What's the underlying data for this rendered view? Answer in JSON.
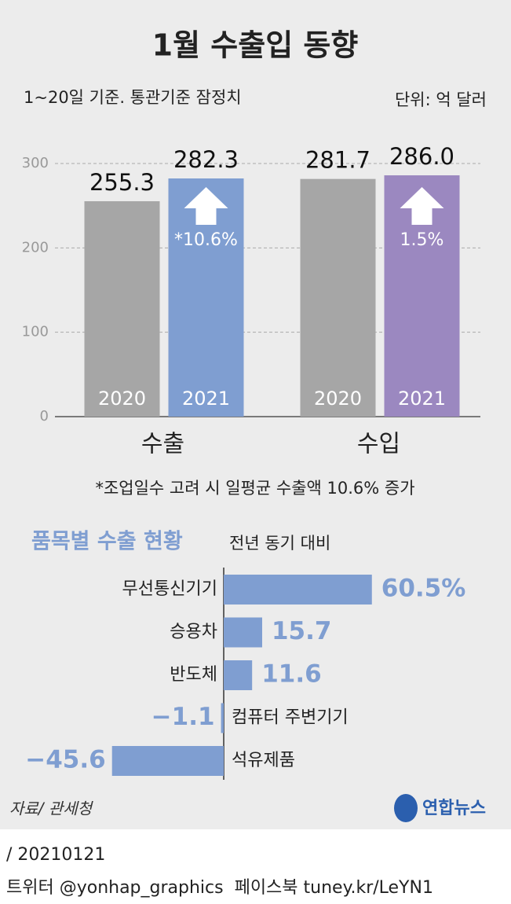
{
  "chart_data": [
    {
      "type": "bar",
      "title": "1월 수출입 동향",
      "subtitle": "1~20일 기준. 통관기준 잠정치",
      "unit": "단위: 억 달러",
      "categories": [
        "수출",
        "수입"
      ],
      "series": [
        {
          "name": "2020",
          "color": "#a6a6a6",
          "values": [
            255.3,
            281.7
          ],
          "value_labels": [
            "255.3",
            "281.7"
          ]
        },
        {
          "name": "2021",
          "colors": [
            "#7f9ed1",
            "#9b88c0"
          ],
          "values": [
            282.3,
            286.0
          ],
          "value_labels": [
            "282.3",
            "286.0"
          ],
          "change_labels": [
            "*10.6%",
            "1.5%"
          ]
        }
      ],
      "ylim": [
        0,
        300
      ],
      "yticks": [
        0,
        100,
        200,
        300
      ],
      "grid": true,
      "footnote": "*조업일수 고려 시 일평균 수출액 10.6% 증가"
    },
    {
      "type": "hbar",
      "title": "품목별 수출 현황",
      "subtitle": "전년 동기 대비",
      "color": "#7f9ed1",
      "categories": [
        "무선통신기기",
        "승용차",
        "반도체",
        "컴퓨터 주변기기",
        "석유제품"
      ],
      "values": [
        60.5,
        15.7,
        11.6,
        -1.1,
        -45.6
      ],
      "value_labels": [
        "60.5%",
        "15.7",
        "11.6",
        "−1.1",
        "−45.6"
      ]
    }
  ],
  "source": "자료/ 관세청",
  "logo": "연합뉴스",
  "date": "/ 20210121",
  "footer": "트위터 @yonhap_graphics  페이스북 tuney.kr/LeYN1"
}
